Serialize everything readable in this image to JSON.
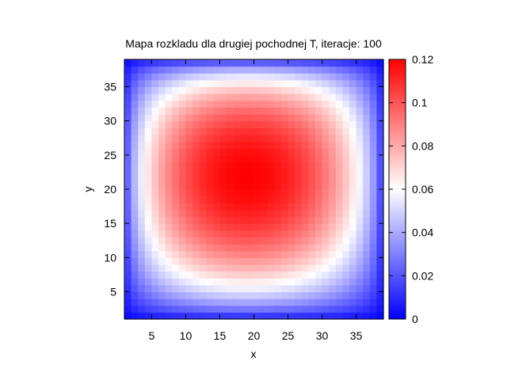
{
  "chart_data": {
    "type": "heatmap",
    "title": "Mapa rozkladu dla drugiej pochodnej T, iteracje: 100",
    "xlabel": "x",
    "ylabel": "y",
    "xlim": [
      1,
      39
    ],
    "ylim": [
      1,
      39
    ],
    "x_ticks": [
      5,
      10,
      15,
      20,
      25,
      30,
      35
    ],
    "y_ticks": [
      5,
      10,
      15,
      20,
      25,
      30,
      35
    ],
    "colorbar": {
      "range": [
        0,
        0.12
      ],
      "ticks": [
        "0",
        "0.02",
        "0.04",
        "0.06",
        "0.08",
        "0.1",
        "0.12"
      ],
      "colors": {
        "low": "#0000ff",
        "mid": "#ffffff",
        "high": "#ff0000"
      }
    },
    "grid_size": [
      38,
      38
    ],
    "peak": {
      "x": 19,
      "y": 22,
      "value": 0.12
    },
    "values_description": "smooth distribution, maximum ~0.12 near (19,22), decreasing to ~0 at all edges"
  }
}
